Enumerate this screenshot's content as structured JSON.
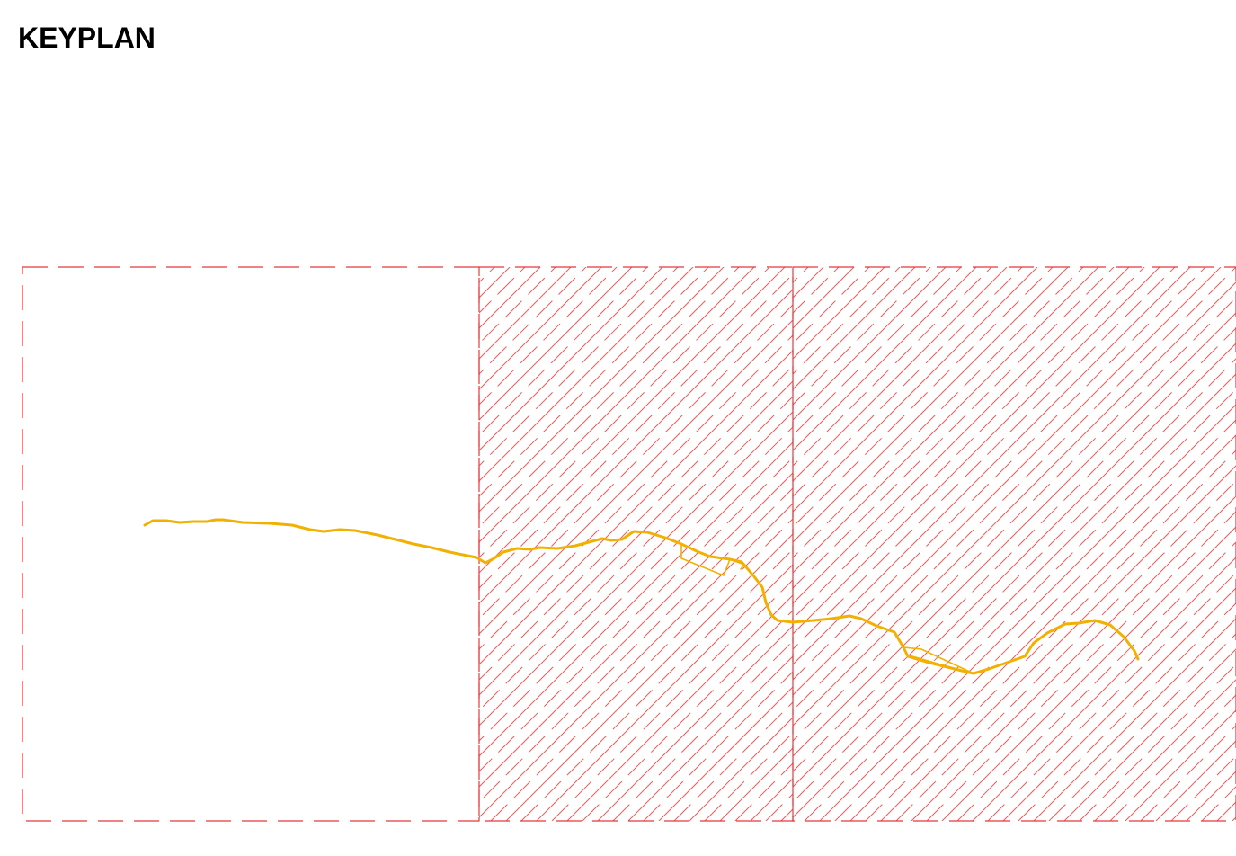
{
  "title": "KEYPLAN",
  "colors": {
    "sheet_border": "#e8383c",
    "hatch": "#f05a5a",
    "route": "#f2b100"
  },
  "sheets": [
    {
      "id": "sheet-1",
      "hatched": false
    },
    {
      "id": "sheet-2",
      "hatched": true
    },
    {
      "id": "sheet-3",
      "hatched": true
    }
  ]
}
